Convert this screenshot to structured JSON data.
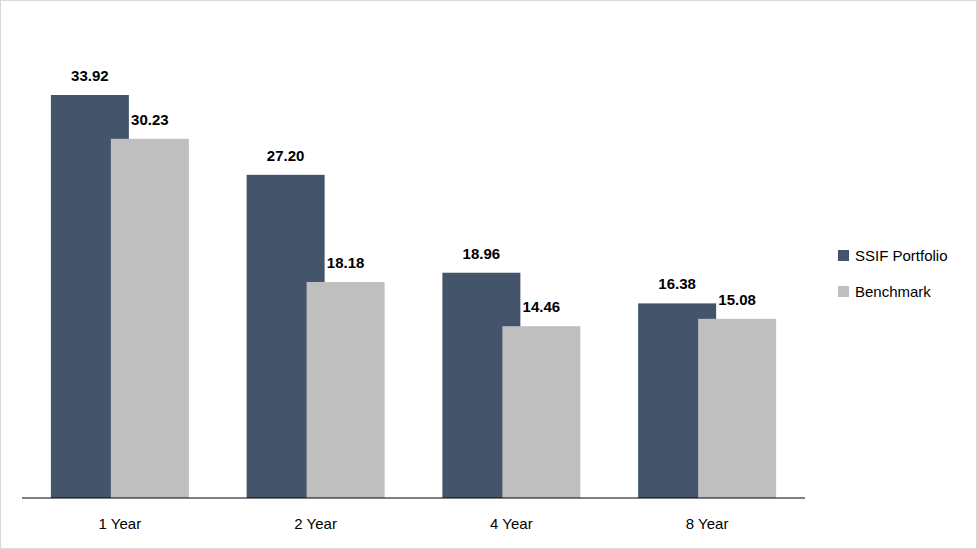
{
  "chart_data": {
    "type": "bar",
    "categories": [
      "1 Year",
      "2 Year",
      "4 Year",
      "8 Year"
    ],
    "series": [
      {
        "name": "SSIF Portfolio",
        "color": "#44546a",
        "values": [
          33.92,
          27.2,
          18.96,
          16.38
        ],
        "value_labels": [
          "33.92",
          "27.20",
          "18.96",
          "16.38"
        ]
      },
      {
        "name": "Benchmark",
        "color": "#bfbfbf",
        "values": [
          30.23,
          18.18,
          14.46,
          15.08
        ],
        "value_labels": [
          "30.23",
          "18.18",
          "14.46",
          "15.08"
        ]
      }
    ],
    "ylim": [
      0,
      35
    ],
    "data_labels": true,
    "tick_labels": "x",
    "legend": "right",
    "grid": false
  }
}
